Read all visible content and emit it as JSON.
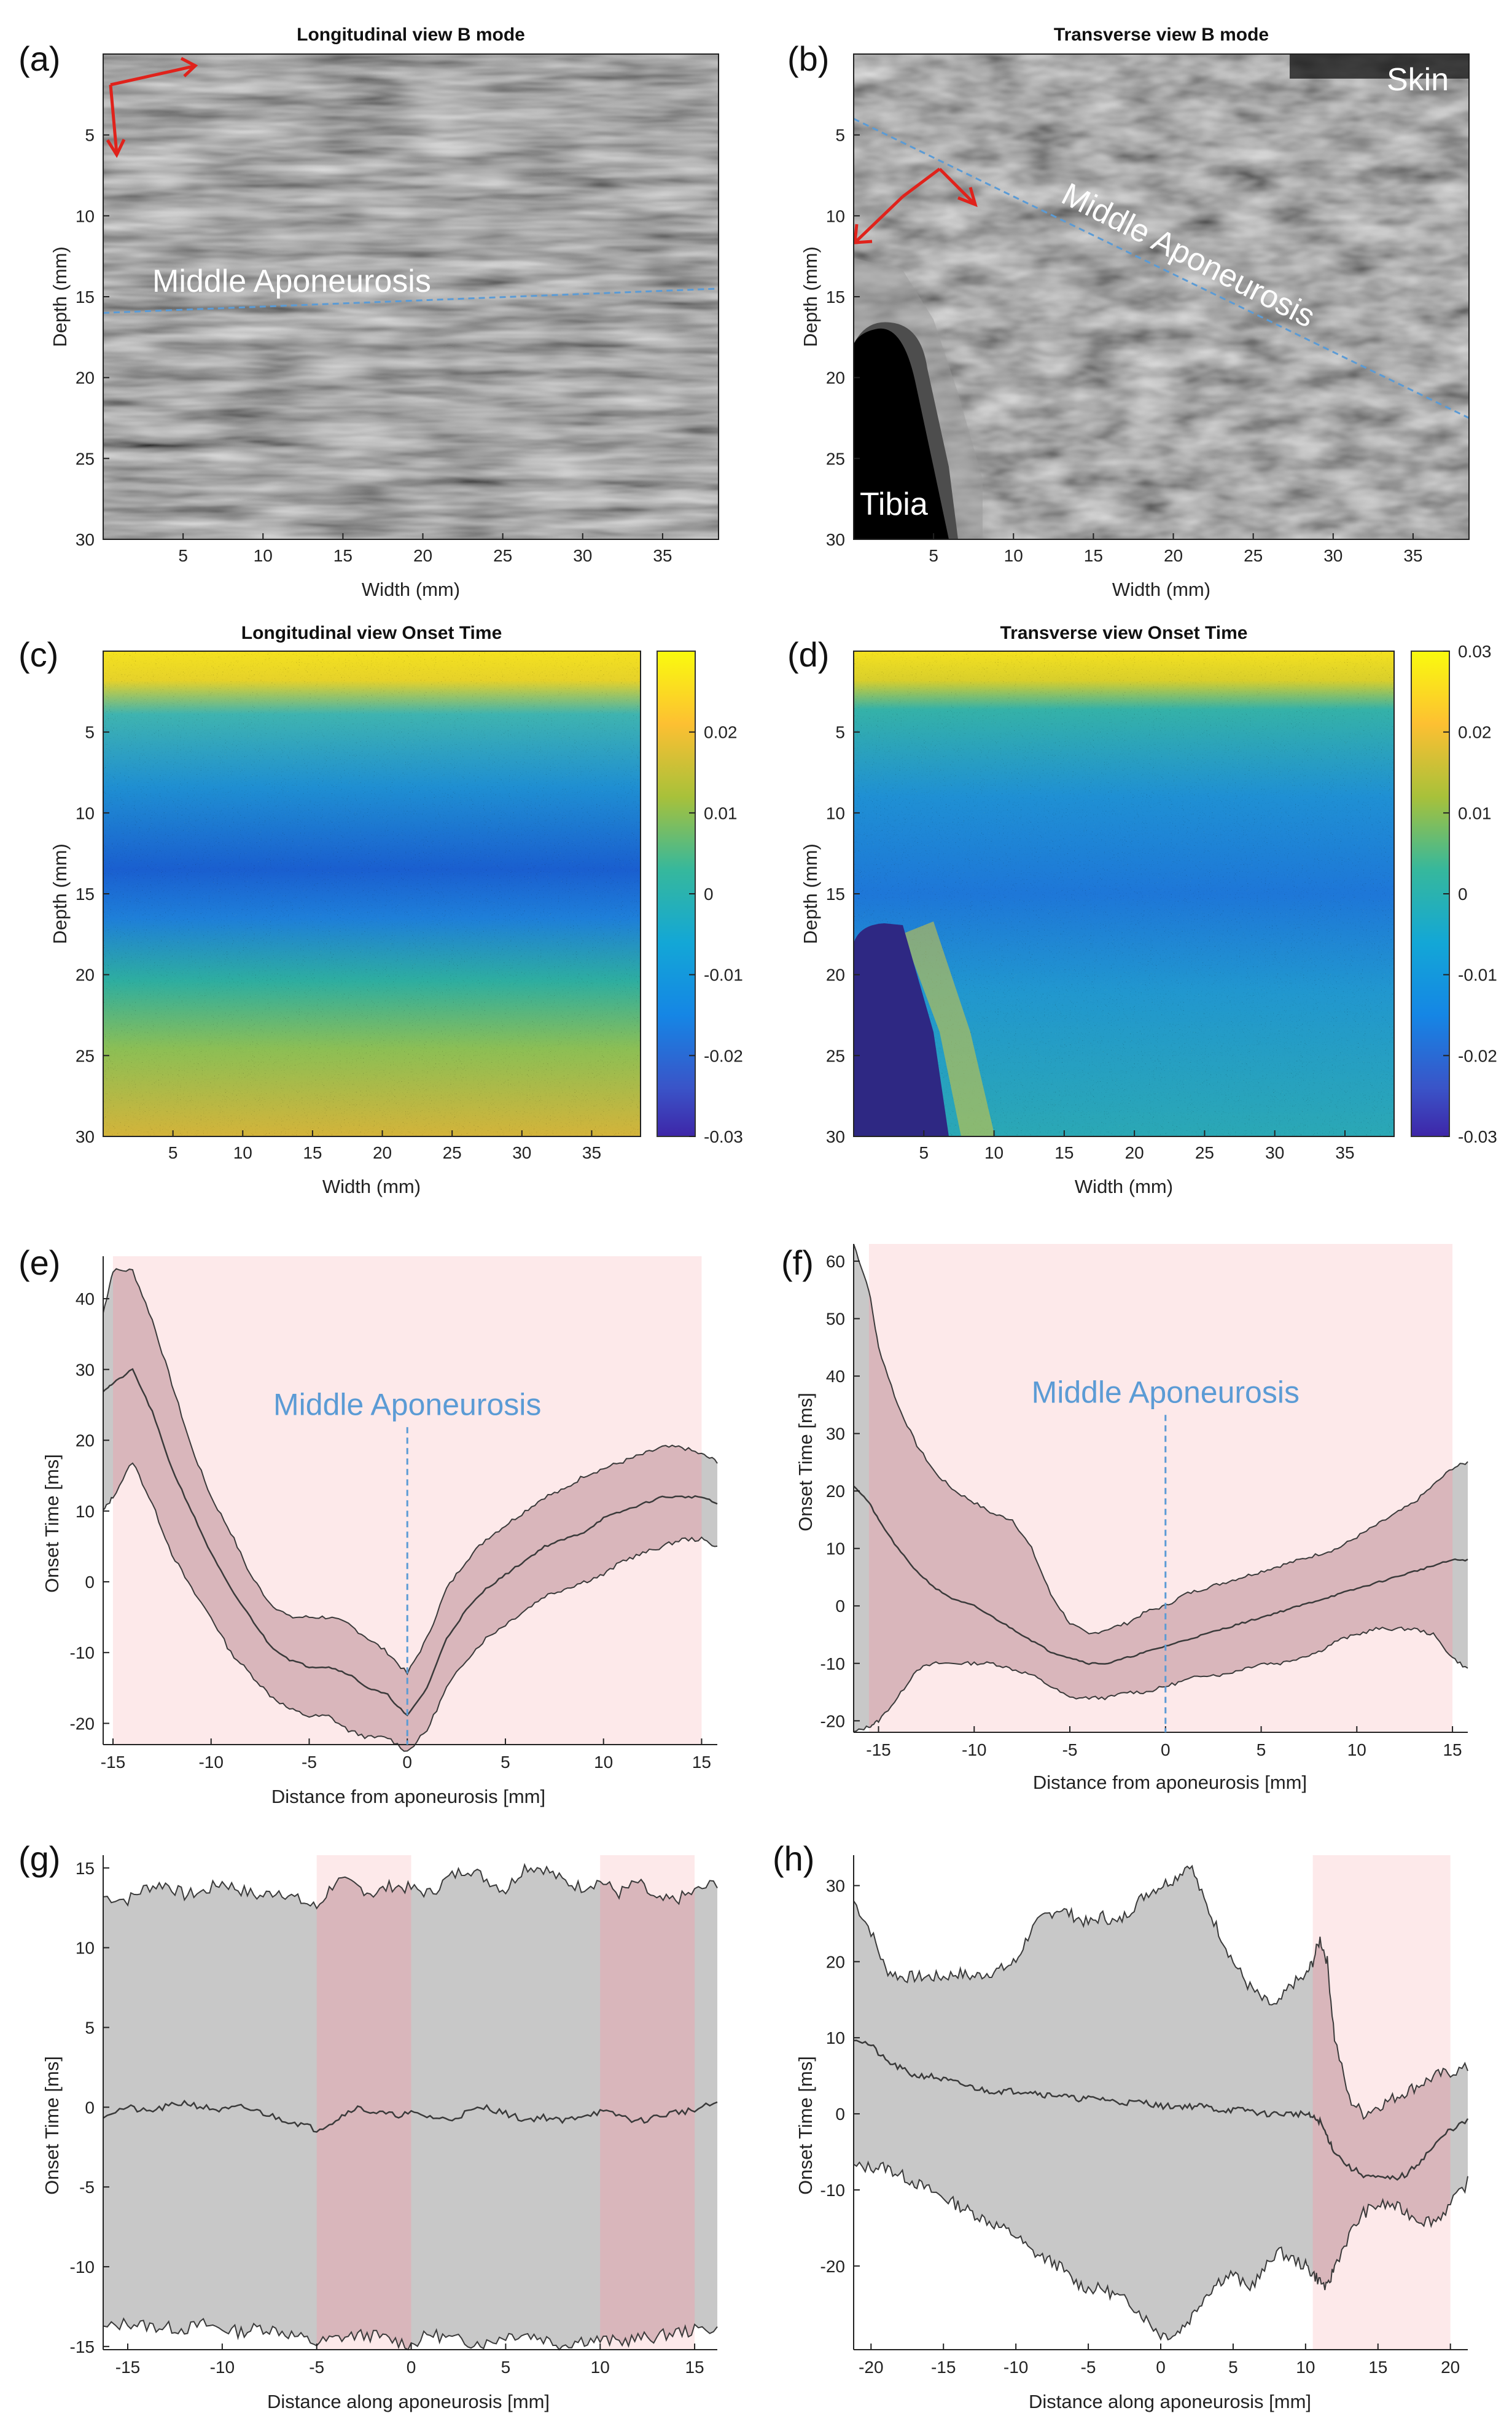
{
  "colors": {
    "pink": "#fde9ea",
    "band_pink": "#d9b6bb",
    "band_gray": "#c8c8c8",
    "line": "#3a3a3a",
    "blue_dash": "#5b9bd5",
    "arrow_red": "#e0221b"
  },
  "panels": {
    "a": {
      "label": "(a)",
      "title": "Longitudinal view B mode",
      "annotation": "Middle Aponeurosis",
      "xlabel": "Width (mm)",
      "ylabel": "Depth (mm)"
    },
    "b": {
      "label": "(b)",
      "title": "Transverse view B mode",
      "annotation": "Middle Aponeurosis",
      "skin": "Skin",
      "tibia": "Tibia",
      "xlabel": "Width (mm)",
      "ylabel": "Depth (mm)"
    },
    "c": {
      "label": "(c)",
      "title": "Longitudinal view Onset Time",
      "xlabel": "Width (mm)",
      "ylabel": "Depth (mm)"
    },
    "d": {
      "label": "(d)",
      "title": "Transverse view Onset Time",
      "xlabel": "Width (mm)",
      "ylabel": "Depth (mm)"
    },
    "e": {
      "label": "(e)",
      "annotation": "Middle Aponeurosis",
      "xlabel": "Distance from aponeurosis [mm]",
      "ylabel": "Onset Time [ms]"
    },
    "f": {
      "label": "(f)",
      "annotation": "Middle Aponeurosis",
      "xlabel": "Distance from  aponeurosis  [mm]",
      "ylabel": "Onset Time [ms]"
    },
    "g": {
      "label": "(g)",
      "xlabel": "Distance along aponeurosis [mm]",
      "ylabel": "Onset Time [ms]"
    },
    "h": {
      "label": "(h)",
      "xlabel": "Distance along aponeurosis [mm]",
      "ylabel": "Onset Time [ms]"
    }
  },
  "chart_data": [
    {
      "panel": "a",
      "type": "heatmap",
      "title": "Longitudinal view B mode",
      "xlabel": "Width (mm)",
      "ylabel": "Depth (mm)",
      "xlim": [
        0,
        38.5
      ],
      "ylim": [
        30,
        0
      ],
      "xticks": [
        5,
        10,
        15,
        20,
        25,
        30,
        35
      ],
      "yticks": [
        5,
        10,
        15,
        20,
        25,
        30
      ],
      "annotation_line": {
        "label": "Middle Aponeurosis",
        "x": [
          0,
          38.5
        ],
        "y": [
          16,
          14.5
        ]
      }
    },
    {
      "panel": "b",
      "type": "heatmap",
      "title": "Transverse view B mode",
      "xlabel": "Width (mm)",
      "ylabel": "Depth (mm)",
      "xlim": [
        0,
        38.5
      ],
      "ylim": [
        30,
        0
      ],
      "xticks": [
        5,
        10,
        15,
        20,
        25,
        30,
        35
      ],
      "yticks": [
        5,
        10,
        15,
        20,
        25,
        30
      ],
      "annotation_line": {
        "label": "Middle Aponeurosis",
        "x": [
          0,
          38.5
        ],
        "y": [
          4,
          22.5
        ]
      }
    },
    {
      "panel": "c",
      "type": "heatmap",
      "title": "Longitudinal view Onset Time",
      "xlabel": "Width (mm)",
      "ylabel": "Depth (mm)",
      "xlim": [
        0,
        38.5
      ],
      "ylim": [
        30,
        0
      ],
      "xticks": [
        5,
        10,
        15,
        20,
        25,
        30,
        35
      ],
      "yticks": [
        5,
        10,
        15,
        20,
        25,
        30
      ],
      "colorbar": {
        "min": -0.03,
        "max": 0.03,
        "ticks": [
          "0.02",
          "0.01",
          "0",
          "-0.01",
          "-0.02",
          "-0.03"
        ],
        "tick_values": [
          0.02,
          0.01,
          0,
          -0.01,
          -0.02,
          -0.03
        ]
      }
    },
    {
      "panel": "d",
      "type": "heatmap",
      "title": "Transverse view Onset Time",
      "xlabel": "Width (mm)",
      "ylabel": "Depth (mm)",
      "xlim": [
        0,
        38.5
      ],
      "ylim": [
        30,
        0
      ],
      "xticks": [
        5,
        10,
        15,
        20,
        25,
        30,
        35
      ],
      "yticks": [
        5,
        10,
        15,
        20,
        25,
        30
      ],
      "colorbar": {
        "min": -0.03,
        "max": 0.03,
        "ticks": [
          "0.03",
          "0.02",
          "0.01",
          "0",
          "-0.01",
          "-0.02",
          "-0.03"
        ],
        "tick_values": [
          0.03,
          0.02,
          0.01,
          0,
          -0.01,
          -0.02,
          -0.03
        ]
      }
    },
    {
      "panel": "e",
      "type": "line",
      "xlabel": "Distance from aponeurosis [mm]",
      "ylabel": "Onset Time [ms]",
      "xlim": [
        -15.5,
        15.8
      ],
      "ylim": [
        -23,
        46
      ],
      "xticks": [
        -15,
        -10,
        -5,
        0,
        5,
        10,
        15
      ],
      "yticks": [
        -20,
        -10,
        0,
        10,
        20,
        30,
        40
      ],
      "shaded_regions": [
        {
          "x0": -15,
          "x1": 15,
          "color": "pink"
        }
      ],
      "band_color": "pink",
      "gray_ends": true,
      "x": [
        -15.5,
        -15,
        -14,
        -13,
        -12,
        -11,
        -10,
        -9,
        -8,
        -7,
        -6,
        -5,
        -4,
        -3,
        -2,
        -1,
        0,
        1,
        2,
        3,
        4,
        5,
        6,
        7,
        8,
        9,
        10,
        11,
        12,
        13,
        14,
        15,
        15.8
      ],
      "mean": [
        27,
        28,
        30,
        24,
        16,
        10,
        4,
        -1,
        -5,
        -9,
        -11,
        -12,
        -12,
        -13,
        -15,
        -16,
        -19,
        -15,
        -8,
        -4,
        -1,
        1,
        3,
        5,
        6,
        7,
        9,
        10,
        11,
        12,
        12,
        12,
        11
      ],
      "upper": [
        38,
        44,
        44,
        37,
        28,
        19,
        12,
        7,
        1,
        -3,
        -5,
        -5,
        -5,
        -6,
        -8,
        -10,
        -13,
        -8,
        -1,
        3,
        6,
        8,
        10,
        12,
        13,
        15,
        16,
        17,
        18,
        19,
        19,
        18,
        17
      ],
      "lower": [
        10,
        12,
        17,
        11,
        4,
        -1,
        -5,
        -10,
        -13,
        -16,
        -18,
        -19,
        -19,
        -21,
        -22,
        -22,
        -24,
        -21,
        -15,
        -11,
        -8,
        -6,
        -4,
        -2,
        -1,
        0,
        1,
        3,
        4,
        5,
        6,
        6,
        5
      ],
      "annotation": {
        "text": "Middle Aponeurosis",
        "x": 0
      }
    },
    {
      "panel": "f",
      "type": "line",
      "xlabel": "Distance from  aponeurosis  [mm]",
      "ylabel": "Onset Time [ms]",
      "xlim": [
        -16.3,
        15.8
      ],
      "ylim": [
        -22,
        63
      ],
      "xticks": [
        -15,
        -10,
        -5,
        0,
        5,
        10,
        15
      ],
      "yticks": [
        -20,
        -10,
        0,
        10,
        20,
        30,
        40,
        50,
        60
      ],
      "shaded_regions": [
        {
          "x0": -15.5,
          "x1": 15,
          "color": "pink"
        }
      ],
      "band_color": "pink",
      "gray_ends": true,
      "x": [
        -16.3,
        -15.5,
        -15,
        -14,
        -13,
        -12,
        -11,
        -10,
        -9,
        -8,
        -7,
        -6,
        -5,
        -4,
        -3,
        -2,
        -1,
        0,
        1,
        2,
        3,
        4,
        5,
        6,
        7,
        8,
        9,
        10,
        11,
        12,
        13,
        14,
        15,
        15.8
      ],
      "mean": [
        21,
        18,
        15,
        10,
        6,
        3,
        1,
        0,
        -2,
        -4,
        -6,
        -8,
        -9,
        -10,
        -10,
        -9,
        -8,
        -7,
        -6,
        -5,
        -4,
        -3,
        -2,
        -1,
        0,
        1,
        2,
        3,
        4,
        5,
        6,
        7,
        8,
        8
      ],
      "upper": [
        63,
        55,
        45,
        35,
        28,
        23,
        20,
        18,
        16,
        15,
        10,
        2,
        -3,
        -5,
        -4,
        -3,
        -1,
        0,
        2,
        3,
        4,
        5,
        6,
        7,
        8,
        9,
        10,
        12,
        14,
        16,
        18,
        21,
        24,
        25
      ],
      "lower": [
        -22,
        -21,
        -20,
        -16,
        -11,
        -10,
        -10,
        -10,
        -10,
        -11,
        -12,
        -14,
        -16,
        -16,
        -16,
        -15,
        -15,
        -14,
        -13,
        -12,
        -12,
        -11,
        -10,
        -10,
        -9,
        -8,
        -6,
        -5,
        -4,
        -4,
        -4,
        -5,
        -9,
        -11
      ],
      "annotation": {
        "text": "Middle Aponeurosis",
        "x": 0
      }
    },
    {
      "panel": "g",
      "type": "line",
      "xlabel": "Distance along aponeurosis [mm]",
      "ylabel": "Onset Time [ms]",
      "xlim": [
        -16.3,
        16.2
      ],
      "ylim": [
        -15.2,
        15.8
      ],
      "xticks": [
        -15,
        -10,
        -5,
        0,
        5,
        10,
        15
      ],
      "yticks": [
        -15,
        -10,
        -5,
        0,
        5,
        10,
        15
      ],
      "yticklabels": [
        "-15",
        "-10",
        "-5",
        "0",
        "5",
        "10",
        "15"
      ],
      "shaded_regions": [
        {
          "x0": -5,
          "x1": 0,
          "color": "pink"
        },
        {
          "x0": 10,
          "x1": 15,
          "color": "pink"
        }
      ],
      "band_color": "gray",
      "x": [
        -16.3,
        -15,
        -14,
        -13,
        -12,
        -11,
        -10,
        -9,
        -8,
        -7,
        -6,
        -5,
        -4,
        -3,
        -2,
        -1,
        0,
        1,
        2,
        3,
        4,
        5,
        6,
        7,
        8,
        9,
        10,
        11,
        12,
        13,
        14,
        15,
        16.2
      ],
      "mean": [
        -0.5,
        0,
        -0.3,
        0,
        0.3,
        0,
        -0.2,
        0,
        -0.3,
        -0.7,
        -1.0,
        -1.4,
        -0.8,
        0,
        -0.3,
        -0.5,
        -0.4,
        -0.6,
        -0.8,
        -0.3,
        0,
        -0.4,
        -0.8,
        -0.6,
        -0.9,
        -0.5,
        -0.3,
        -0.5,
        -0.9,
        -0.6,
        -0.3,
        -0.2,
        0.3
      ],
      "upper": [
        13.2,
        13.0,
        13.8,
        14.0,
        13.3,
        13.5,
        14.1,
        13.6,
        13.2,
        13.6,
        13.0,
        12.5,
        14.2,
        13.9,
        13.4,
        13.9,
        13.7,
        13.4,
        14.4,
        15.0,
        14.3,
        13.6,
        15.1,
        15.0,
        14.2,
        13.8,
        14.2,
        13.4,
        14.1,
        12.9,
        13.0,
        13.5,
        14.1
      ],
      "lower": [
        -13.9,
        -13.5,
        -13.7,
        -13.8,
        -13.9,
        -13.6,
        -13.9,
        -14.1,
        -13.8,
        -14.0,
        -14.4,
        -14.8,
        -14.5,
        -14.3,
        -14.3,
        -14.6,
        -14.9,
        -14.2,
        -14.5,
        -14.7,
        -14.8,
        -14.3,
        -14.2,
        -14.5,
        -14.9,
        -14.6,
        -14.6,
        -14.7,
        -14.5,
        -14.4,
        -14.1,
        -14.0,
        -13.8
      ]
    },
    {
      "panel": "h",
      "type": "line",
      "xlabel": "Distance along aponeurosis [mm]",
      "ylabel": "Onset Time [ms]",
      "xlim": [
        -21.2,
        21.2
      ],
      "ylim": [
        -31,
        34
      ],
      "xticks": [
        -20,
        -15,
        -10,
        -5,
        0,
        5,
        10,
        15,
        20
      ],
      "yticks": [
        -20,
        -10,
        0,
        10,
        20,
        30
      ],
      "shaded_regions": [
        {
          "x0": 10.5,
          "x1": 20,
          "color": "pink"
        }
      ],
      "band_color": "gray",
      "band_color_in_region": "pink",
      "x": [
        -21.2,
        -20,
        -19,
        -18,
        -17,
        -16,
        -15,
        -14,
        -13,
        -12,
        -11,
        -10,
        -9,
        -8,
        -7,
        -6,
        -5,
        -4,
        -3,
        -2,
        -1,
        0,
        1,
        2,
        3,
        4,
        5,
        6,
        7,
        8,
        9,
        10,
        10.5,
        11,
        11.5,
        12,
        13,
        14,
        15,
        16,
        17,
        18,
        19,
        20,
        21.2
      ],
      "mean": [
        10,
        9,
        7,
        6,
        5,
        5,
        4.5,
        4,
        3.5,
        3,
        3,
        3,
        3,
        2.5,
        2.5,
        2,
        2,
        2,
        1.5,
        1.5,
        1.5,
        1,
        1,
        1,
        1,
        0.5,
        0.5,
        0.5,
        0,
        0,
        0,
        0,
        -0.5,
        -1,
        -3,
        -5,
        -7,
        -8,
        -8.5,
        -8.5,
        -8,
        -6,
        -4,
        -2,
        -1
      ],
      "upper": [
        28,
        24,
        19,
        18,
        18,
        18,
        18,
        18.5,
        18,
        18.5,
        19,
        20,
        24,
        26,
        27,
        26,
        25,
        26,
        25,
        27,
        29,
        30,
        31,
        33,
        28,
        24,
        20,
        17,
        15,
        14,
        17,
        18,
        20,
        23,
        20,
        10,
        2,
        0,
        1,
        2,
        3,
        4,
        5,
        5.5,
        6
      ],
      "lower": [
        -7,
        -7,
        -7,
        -8,
        -9,
        -10,
        -11,
        -12,
        -13,
        -14,
        -15,
        -16,
        -18,
        -19,
        -20,
        -22,
        -23,
        -23,
        -24,
        -25,
        -27,
        -29,
        -29,
        -27,
        -24,
        -22,
        -21,
        -23,
        -21,
        -18,
        -19,
        -20,
        -21,
        -22,
        -23,
        -20,
        -16,
        -13,
        -12,
        -12,
        -13,
        -14,
        -14,
        -12,
        -9
      ]
    }
  ]
}
